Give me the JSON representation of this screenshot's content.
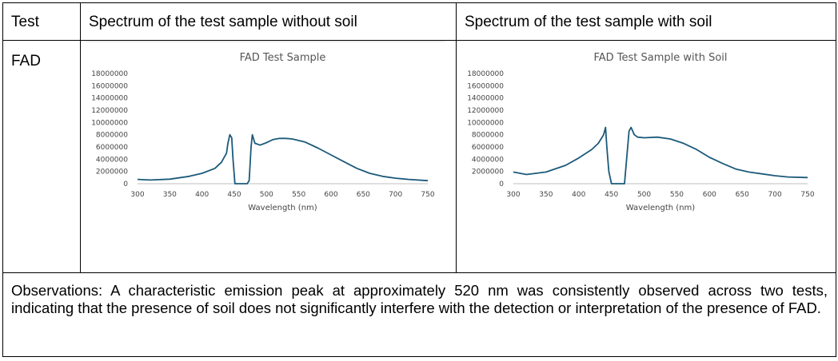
{
  "table": {
    "headers": [
      "Test",
      "Spectrum of the test sample without soil",
      "Spectrum of the test sample with soil"
    ],
    "row_label": "FAD",
    "observations": "Observations: A characteristic emission peak at approximately 520 nm was consistently observed across two tests, indicating that the presence of soil does not significantly interfere with the detection or interpretation of the presence of FAD."
  },
  "chart_data": [
    {
      "type": "line",
      "title": "FAD Test Sample",
      "xlabel": "Wavelength (nm)",
      "ylabel": "",
      "xlim": [
        300,
        750
      ],
      "ylim": [
        0,
        18000000
      ],
      "x_ticks": [
        300,
        350,
        400,
        450,
        500,
        550,
        600,
        650,
        700,
        750
      ],
      "y_ticks": [
        0,
        2000000,
        4000000,
        6000000,
        8000000,
        10000000,
        12000000,
        14000000,
        16000000,
        18000000
      ],
      "grid": false,
      "color": "#1b5a7a",
      "series": [
        {
          "x": [
            300,
            320,
            350,
            380,
            400,
            420,
            430,
            438,
            440,
            443,
            446,
            448,
            451,
            460,
            470,
            473,
            476,
            478,
            482,
            490,
            500,
            510,
            520,
            530,
            540,
            560,
            580,
            600,
            620,
            640,
            660,
            680,
            700,
            720,
            750
          ],
          "y": [
            700000,
            600000,
            750000,
            1200000,
            1700000,
            2500000,
            3500000,
            5000000,
            6500000,
            8000000,
            7500000,
            4000000,
            0,
            0,
            0,
            500000,
            6000000,
            8000000,
            6600000,
            6300000,
            6700000,
            7200000,
            7400000,
            7400000,
            7300000,
            6800000,
            5800000,
            4700000,
            3600000,
            2500000,
            1700000,
            1200000,
            900000,
            700000,
            500000
          ]
        }
      ]
    },
    {
      "type": "line",
      "title": "FAD Test Sample with Soil",
      "xlabel": "Wavelength (nm)",
      "ylabel": "",
      "xlim": [
        300,
        750
      ],
      "ylim": [
        0,
        18000000
      ],
      "x_ticks": [
        300,
        350,
        400,
        450,
        500,
        550,
        600,
        650,
        700,
        750
      ],
      "y_ticks": [
        0,
        2000000,
        4000000,
        6000000,
        8000000,
        10000000,
        12000000,
        14000000,
        16000000,
        18000000
      ],
      "grid": false,
      "color": "#1b5a7a",
      "series": [
        {
          "x": [
            300,
            320,
            350,
            380,
            400,
            420,
            430,
            438,
            441,
            443,
            446,
            450,
            460,
            470,
            474,
            477,
            480,
            485,
            490,
            500,
            520,
            540,
            560,
            580,
            600,
            620,
            640,
            660,
            680,
            700,
            720,
            750
          ],
          "y": [
            1900000,
            1500000,
            1900000,
            3000000,
            4200000,
            5600000,
            6600000,
            8000000,
            9200000,
            6000000,
            2000000,
            0,
            0,
            0,
            5000000,
            8600000,
            9200000,
            8000000,
            7600000,
            7500000,
            7600000,
            7300000,
            6600000,
            5600000,
            4300000,
            3300000,
            2400000,
            1900000,
            1600000,
            1300000,
            1100000,
            1000000
          ]
        }
      ]
    }
  ]
}
